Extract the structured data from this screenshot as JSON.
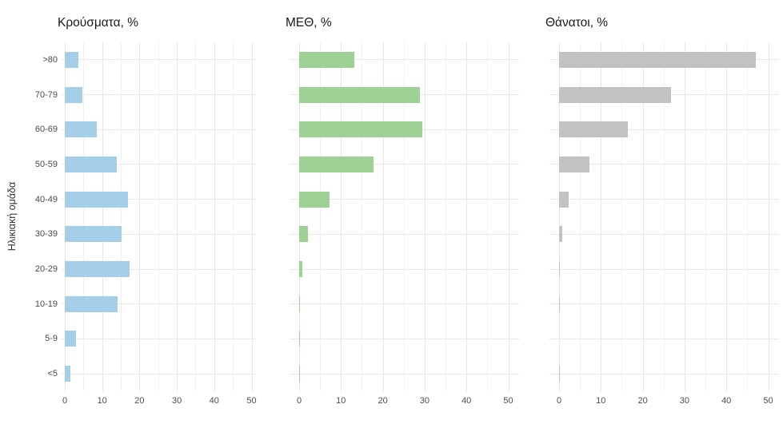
{
  "chart_data": {
    "type": "bar",
    "orientation": "horizontal",
    "layout": "three horizontal facets sharing one categorical y-axis",
    "ylabel": "Ηλικιακή ομάδα",
    "xlabel": "",
    "categories": [
      ">80",
      "70-79",
      "60-69",
      "50-59",
      "40-49",
      "30-39",
      "20-29",
      "10-19",
      "5-9",
      "<5"
    ],
    "x_ticks": [
      "0",
      "10",
      "20",
      "30",
      "40",
      "50"
    ],
    "x_tick_values": [
      0,
      10,
      20,
      30,
      40,
      50
    ],
    "xlim": [
      0,
      52
    ],
    "grid": true,
    "legend": "none",
    "facets": [
      {
        "title": "Κρούσματα, %",
        "bar_color": "#a5cfe8",
        "values": [
          3.7,
          4.8,
          8.5,
          14.0,
          17.0,
          15.1,
          17.3,
          14.2,
          3.0,
          1.6
        ]
      },
      {
        "title": "ΜΕΘ, %",
        "bar_color": "#9ed194",
        "values": [
          13.2,
          28.9,
          29.4,
          17.8,
          7.3,
          2.1,
          0.7,
          0.2,
          0.1,
          0.1
        ]
      },
      {
        "title": "Θάνατοι, %",
        "bar_color": "#c2c2c2",
        "values": [
          47.0,
          26.8,
          16.5,
          7.3,
          2.3,
          0.7,
          0.2,
          0.1,
          0.0,
          0.1
        ]
      }
    ]
  }
}
